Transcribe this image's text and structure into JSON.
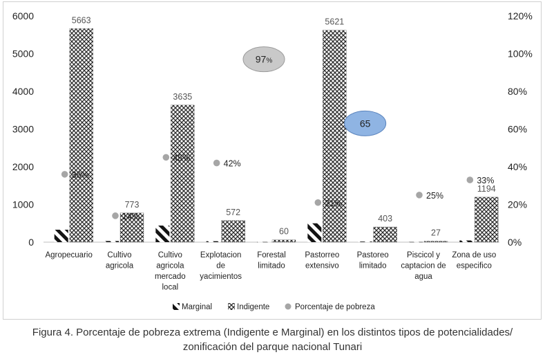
{
  "chart_data": {
    "type": "bar",
    "categories": [
      [
        "Agropecuario"
      ],
      [
        "Cultivo",
        "agricola"
      ],
      [
        "Cultivo",
        "agricola",
        "mercado",
        "local"
      ],
      [
        "Explotacion",
        "de",
        "yacimientos"
      ],
      [
        "Forestal",
        "limitado"
      ],
      [
        "Pastorreo",
        "extensivo"
      ],
      [
        "Pastoreo",
        "limitado"
      ],
      [
        "Piscicol y",
        "captacion de",
        "agua"
      ],
      [
        "Zona de uso",
        "especifico"
      ]
    ],
    "series": [
      {
        "name": "Marginal",
        "axis": "left",
        "values": [
          330,
          30,
          440,
          25,
          5,
          500,
          15,
          5,
          45
        ]
      },
      {
        "name": "Indigente",
        "axis": "left",
        "values": [
          5663,
          773,
          3635,
          572,
          60,
          5621,
          403,
          27,
          1194
        ],
        "labels": [
          "5663",
          "773",
          "3635",
          "572",
          "60",
          "5621",
          "403",
          "27",
          "1194"
        ]
      },
      {
        "name": "Porcentaje de pobreza",
        "axis": "right",
        "values": [
          36,
          14,
          45,
          42,
          null,
          21,
          null,
          25,
          33
        ],
        "labels": [
          "36%",
          "14%",
          "45%",
          "42%",
          "",
          "21%",
          "",
          "25%",
          "33%"
        ]
      }
    ],
    "y_left": {
      "min": 0,
      "max": 6000,
      "ticks": [
        "0",
        "1000",
        "2000",
        "3000",
        "4000",
        "5000",
        "6000"
      ]
    },
    "y_right": {
      "min": 0,
      "max": 120,
      "ticks": [
        "0%",
        "20%",
        "40%",
        "60%",
        "80%",
        "100%",
        "120%"
      ]
    },
    "annotations": [
      {
        "text": "97",
        "suffix": "%",
        "style": "gray-ellipse",
        "x_category": 4.35,
        "y_right": 97
      },
      {
        "text": "65",
        "suffix": "",
        "style": "blue-ellipse",
        "x_category": 6.35,
        "y_right": 63
      }
    ],
    "legend": {
      "placement": "bottom",
      "items": [
        "Marginal",
        "Indigente",
        "Porcentaje de pobreza"
      ]
    },
    "grid": false,
    "colors": {
      "marginal": "#1a1a1a",
      "indigente": "#333333",
      "point": "#a6a6a6",
      "gray_ellipse": "#c9c9c9",
      "blue_ellipse": "#8fb4e3"
    }
  },
  "caption": {
    "line1": "Figura 4. Porcentaje de pobreza extrema (Indigente e Marginal) en los distintos tipos de potencialidades/",
    "line2": "zonificación del parque nacional Tunari"
  }
}
